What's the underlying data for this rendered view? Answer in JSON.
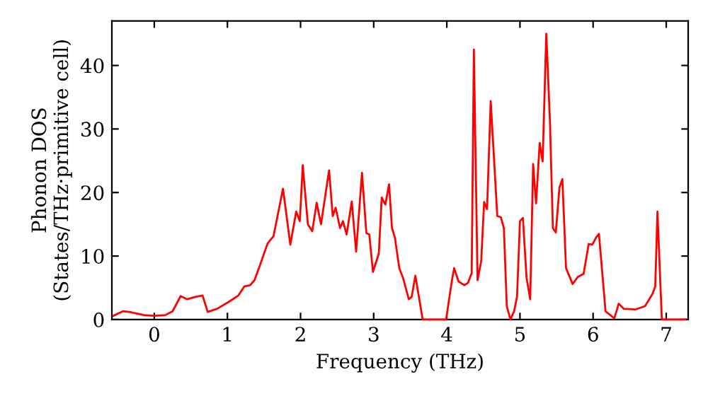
{
  "chart_data": {
    "type": "line",
    "xlabel": "Frequency (THz)",
    "ylabel": "Phonon DOS\n(States/THz·primitive cell)",
    "x": [
      -0.56,
      -0.43,
      -0.34,
      -0.14,
      0,
      0.15,
      0.25,
      0.36,
      0.45,
      0.57,
      0.66,
      0.73,
      0.86,
      1.02,
      1.15,
      1.23,
      1.31,
      1.37,
      1.44,
      1.55,
      1.63,
      1.76,
      1.86,
      1.94,
      1.99,
      2.03,
      2.1,
      2.16,
      2.22,
      2.28,
      2.39,
      2.44,
      2.48,
      2.54,
      2.58,
      2.63,
      2.7,
      2.76,
      2.84,
      2.9,
      2.94,
      2.99,
      3.07,
      3.11,
      3.16,
      3.21,
      3.25,
      3.29,
      3.35,
      3.4,
      3.48,
      3.52,
      3.57,
      3.67,
      3.99,
      4.07,
      4.1,
      4.16,
      4.24,
      4.29,
      4.34,
      4.37,
      4.42,
      4.47,
      4.51,
      4.55,
      4.6,
      4.69,
      4.74,
      4.78,
      4.82,
      4.87,
      4.92,
      4.96,
      5.0,
      5.04,
      5.09,
      5.14,
      5.18,
      5.22,
      5.27,
      5.31,
      5.36,
      5.41,
      5.45,
      5.49,
      5.54,
      5.58,
      5.63,
      5.72,
      5.79,
      5.87,
      5.94,
      5.99,
      6.04,
      6.08,
      6.17,
      6.29,
      6.35,
      6.42,
      6.58,
      6.71,
      6.81,
      6.85,
      6.88,
      6.94,
      7.26
    ],
    "series": [
      {
        "color": "#ff0000",
        "values": [
          0.6,
          1.3,
          1.2,
          0.7,
          0.6,
          0.7,
          1.3,
          3.7,
          3.2,
          3.6,
          3.8,
          1.2,
          1.7,
          2.8,
          3.8,
          5.2,
          5.4,
          6.2,
          8.4,
          12.0,
          13.1,
          20.6,
          11.8,
          17.0,
          15.5,
          24.3,
          15.0,
          13.9,
          18.4,
          15.0,
          23.5,
          16.3,
          17.6,
          14.4,
          15.5,
          13.4,
          18.6,
          10.7,
          23.1,
          13.6,
          13.4,
          7.5,
          10.4,
          19.2,
          18.1,
          21.3,
          14.4,
          12.9,
          8.1,
          6.6,
          3.2,
          3.6,
          6.9,
          0,
          0,
          6.2,
          8.1,
          6.0,
          5.4,
          5.8,
          7.3,
          42.5,
          6.2,
          9.2,
          18.5,
          17.4,
          34.4,
          16.3,
          16.1,
          14.4,
          2.1,
          0,
          1.3,
          3.6,
          15.5,
          16.0,
          6.6,
          3.2,
          24.5,
          18.3,
          27.8,
          24.9,
          45.0,
          31.2,
          14.4,
          13.7,
          20.8,
          22.1,
          8.1,
          5.6,
          6.7,
          7.2,
          11.9,
          11.8,
          12.9,
          13.5,
          1.3,
          0.2,
          2.5,
          1.7,
          1.6,
          2.1,
          4.0,
          5.2,
          17.0,
          0,
          0
        ]
      }
    ],
    "xlim": [
      -0.58,
      7.3
    ],
    "ylim": [
      0,
      47
    ],
    "xticks": [
      0,
      1,
      2,
      3,
      4,
      5,
      6,
      7
    ],
    "yticks": [
      0,
      10,
      20,
      30,
      40
    ],
    "grid": false,
    "legend": false,
    "marker": "none",
    "line_style": "solid"
  }
}
